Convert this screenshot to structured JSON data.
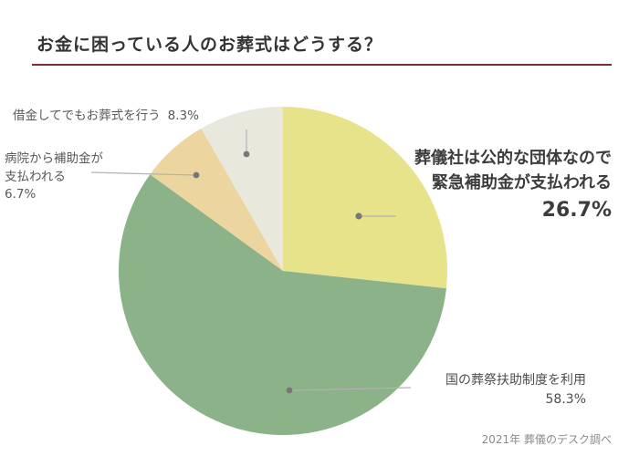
{
  "page": {
    "title": "お金に困っている人のお葬式はどうする？",
    "source": "2021年 葬儀のデスク調べ"
  },
  "theme": {
    "title_color": "#333333",
    "title_rule_color": "#7a3030",
    "label_color": "#595959",
    "leader_line_color": "#b3b3b3",
    "leader_dot_color": "#777777",
    "background": "#ffffff"
  },
  "chart_data": {
    "type": "pie",
    "title": "お金に困っている人のお葬式はどうする？",
    "start_angle_deg": 0,
    "direction": "clockwise",
    "legend": "none",
    "source": "2021年 葬儀のデスク調べ",
    "slices": [
      {
        "label": "葬儀社は公的な団体なので緊急補助金が支払われる",
        "value": 26.7,
        "color": "#e6e38a"
      },
      {
        "label": "国の葬祭扶助制度を利用",
        "value": 58.3,
        "color": "#8cb289"
      },
      {
        "label": "病院から補助金が支払われる",
        "value": 6.7,
        "color": "#edd5a0"
      },
      {
        "label": "借金してでもお葬式を行う",
        "value": 8.3,
        "color": "#e9e8dd"
      }
    ]
  },
  "labels": {
    "debt": {
      "text": "借金してでもお葬式を行う",
      "pct": "8.3%"
    },
    "hospital": {
      "line1": "病院から補助金が",
      "line2": "支払われる",
      "pct": "6.7%"
    },
    "funeral_company": {
      "line1": "葬儀社は公的な団体なので",
      "line2": "緊急補助金が支払われる",
      "pct": "26.7%"
    },
    "state_aid": {
      "text": "国の葬祭扶助制度を利用",
      "pct": "58.3%"
    }
  }
}
